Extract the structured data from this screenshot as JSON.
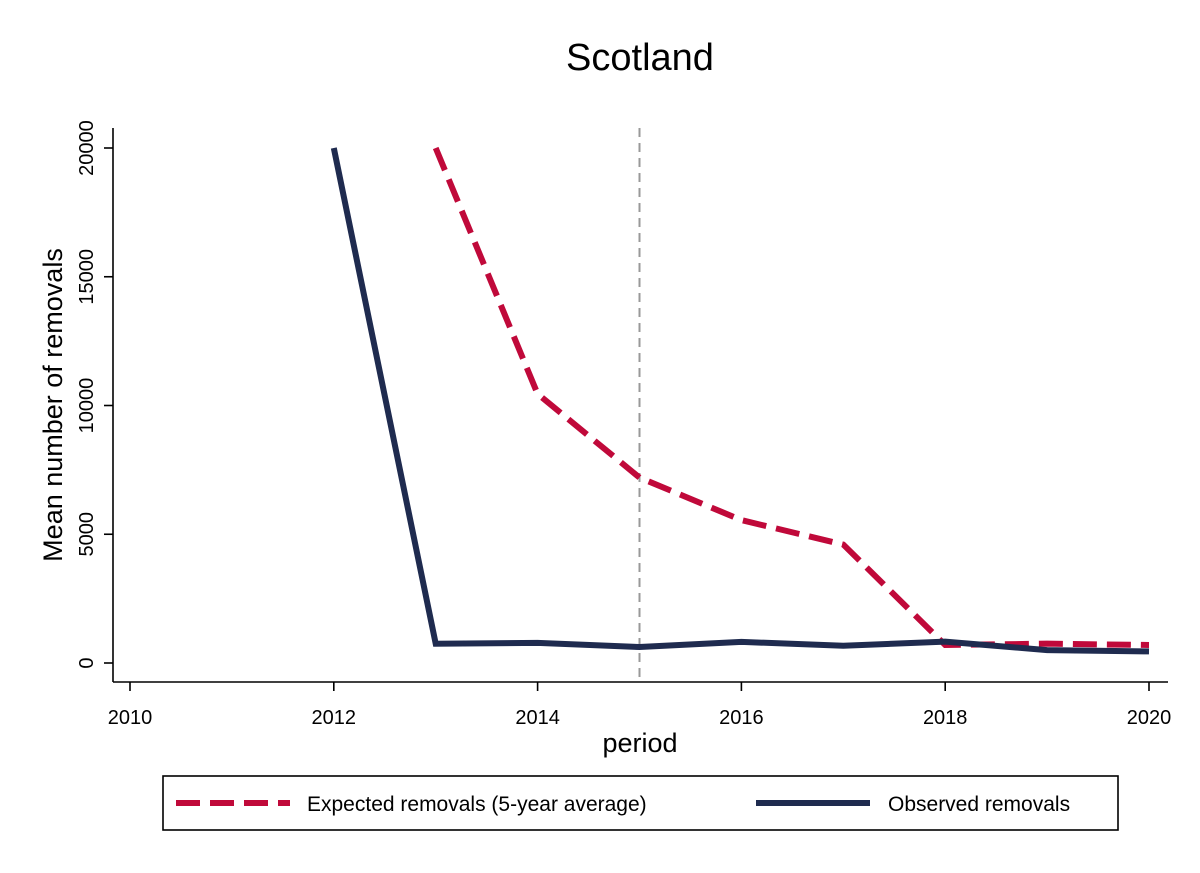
{
  "chart_data": {
    "type": "line",
    "title": "Scotland",
    "xlabel": "period",
    "ylabel": "Mean number of removals",
    "xlim": [
      2010,
      2020
    ],
    "ylim": [
      0,
      20000
    ],
    "x_ticks": [
      2010,
      2012,
      2014,
      2016,
      2018,
      2020
    ],
    "y_ticks": [
      0,
      5000,
      10000,
      15000,
      20000
    ],
    "reference_line": {
      "x": 2015,
      "style": "dashed",
      "color": "#999999"
    },
    "grid": false,
    "legend_position": "bottom",
    "series": [
      {
        "name": "Expected removals (5-year average)",
        "style": "dashed",
        "color": "#c0093a",
        "x": [
          2013,
          2014,
          2015,
          2016,
          2017,
          2018,
          2019,
          2020
        ],
        "values": [
          20000,
          10450,
          7200,
          5550,
          4600,
          700,
          750,
          700
        ]
      },
      {
        "name": "Observed removals",
        "style": "solid",
        "color": "#1f2b4f",
        "x": [
          2012,
          2013,
          2014,
          2015,
          2016,
          2017,
          2018,
          2019,
          2020
        ],
        "values": [
          20000,
          750,
          780,
          620,
          820,
          670,
          830,
          500,
          450
        ]
      }
    ]
  }
}
